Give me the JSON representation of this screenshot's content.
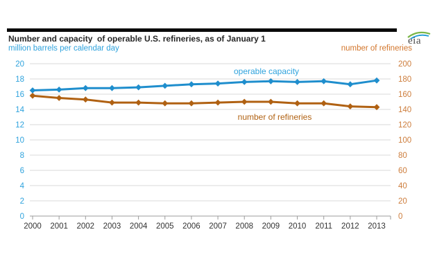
{
  "header": {
    "title": "Number and capacity  of operable U.S. refineries, as of January 1",
    "left_axis_unit_label": "million barrels per calendar day",
    "right_axis_unit_label": "number of refineries",
    "logo_text": "eia"
  },
  "colors": {
    "blue_line": "#1f8ecd",
    "blue_text": "#2fa3dd",
    "orange_line": "#b06112",
    "orange_text": "#d2752b",
    "orange_tick_text": "#cd7d3c",
    "title_text": "#262626",
    "gridline": "#d9d9d9",
    "axis_line": "#9b9b9b",
    "year_label_text": "#333333",
    "top_bar": "#0a0a0a"
  },
  "chart_data": {
    "type": "line",
    "title": "Number and capacity of operable U.S. refineries, as of January 1",
    "x": [
      2000,
      2001,
      2002,
      2003,
      2004,
      2005,
      2006,
      2007,
      2008,
      2009,
      2010,
      2011,
      2012,
      2013
    ],
    "series": [
      {
        "name": "operable capacity",
        "axis": "left",
        "color": "#1f8ecd",
        "label_color": "#2fa3dd",
        "values": [
          16.5,
          16.6,
          16.8,
          16.8,
          16.9,
          17.1,
          17.3,
          17.4,
          17.6,
          17.7,
          17.6,
          17.7,
          17.3,
          17.8
        ]
      },
      {
        "name": "number of refineries",
        "axis": "right",
        "color": "#b06112",
        "label_color": "#b06112",
        "values": [
          158,
          155,
          153,
          149,
          149,
          148,
          148,
          149,
          150,
          150,
          148,
          148,
          144,
          143
        ]
      }
    ],
    "left_axis": {
      "label": "million barrels per calendar day",
      "min": 0,
      "max": 20,
      "step": 2,
      "ticks": [
        "20",
        "18",
        "16",
        "14",
        "12",
        "10",
        "8",
        "6",
        "4",
        "2",
        "0"
      ]
    },
    "right_axis": {
      "label": "number of refineries",
      "min": 0,
      "max": 200,
      "step": 20,
      "ticks": [
        "200",
        "180",
        "160",
        "140",
        "120",
        "100",
        "80",
        "60",
        "40",
        "20",
        "0"
      ]
    },
    "grid": true,
    "legend": "inline-labels",
    "marker": "diamond"
  }
}
